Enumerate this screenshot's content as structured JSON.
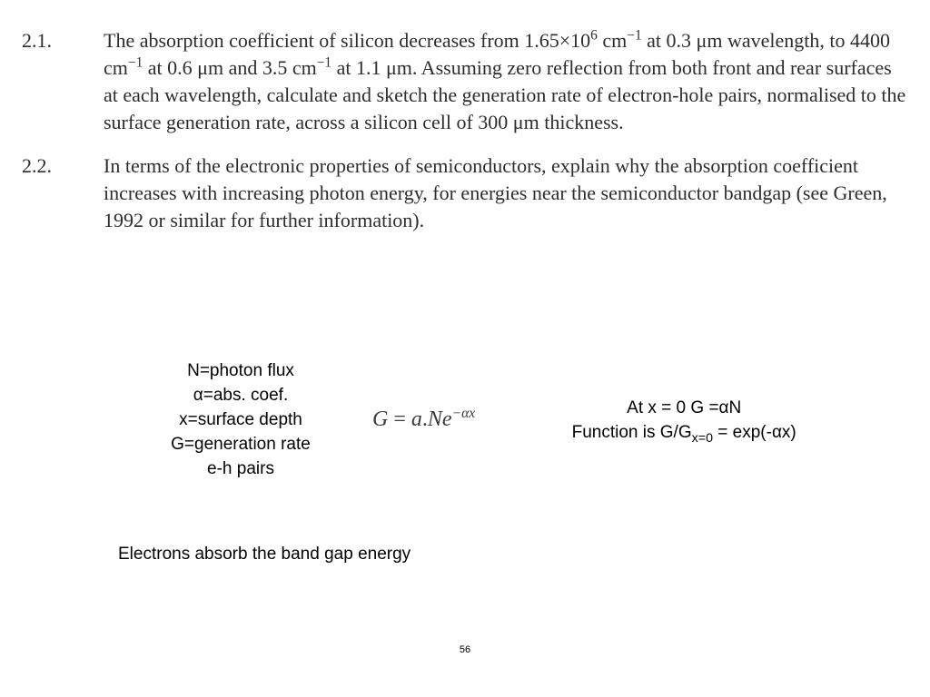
{
  "problems": [
    {
      "number": "2.1.",
      "html": "The absorption coefficient of silicon decreases from 1.65×10<sup>6</sup> cm<sup>−1</sup> at 0.3 μm wavelength, to 4400 cm<sup>−1</sup> at 0.6 μm and 3.5 cm<sup>−1</sup> at 1.1 μm. Assuming zero reflection from both front and rear surfaces at each wavelength, calculate and sketch the generation rate of electron-hole pairs, normalised to the surface generation rate, across a silicon cell of 300 μm thickness."
    },
    {
      "number": "2.2.",
      "html": "In terms of the electronic properties of semiconductors, explain why the absorption coefficient increases with increasing photon energy, for energies near the semiconductor bandgap (see Green, 1992 or similar for further information)."
    }
  ],
  "definitions": [
    "N=photon flux",
    "α=abs. coef.",
    "x=surface depth",
    "G=generation rate",
    "e-h pairs"
  ],
  "formula": {
    "plain": "G = a.Ne^{-αx}"
  },
  "solution": [
    "At x = 0 G =αN",
    "Function is G/Gx=0 = exp(-αx)"
  ],
  "conclusion": "Electrons absorb the band gap energy",
  "page_number": "56"
}
